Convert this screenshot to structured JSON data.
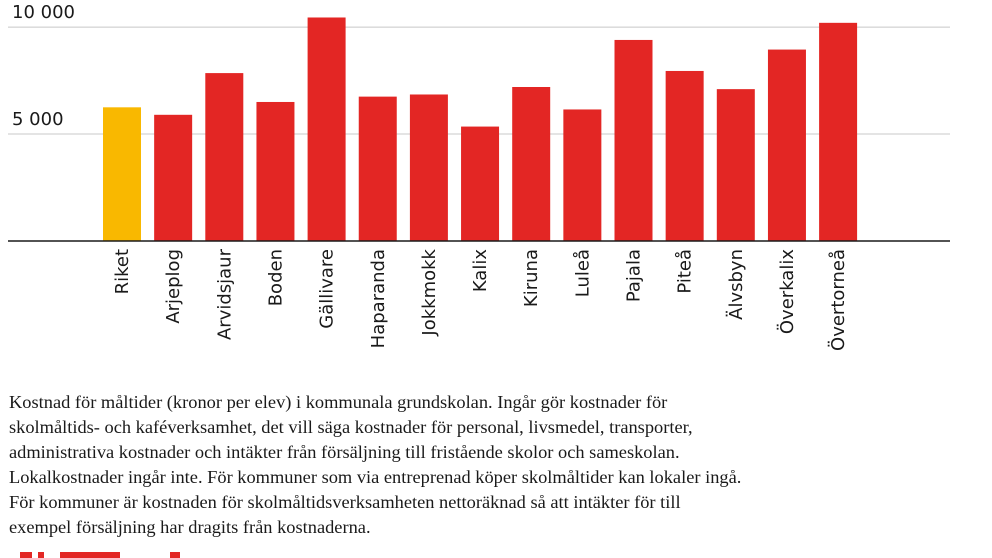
{
  "chart_data": {
    "type": "bar",
    "categories": [
      "Riket",
      "Arjeplog",
      "Arvidsjaur",
      "Boden",
      "Gällivare",
      "Haparanda",
      "Jokkmokk",
      "Kalix",
      "Kiruna",
      "Luleå",
      "Pajala",
      "Piteå",
      "Älvsbyn",
      "Överkalix",
      "Övertorneå"
    ],
    "values": [
      6250,
      5900,
      7850,
      6500,
      10450,
      6750,
      6850,
      5350,
      7200,
      6150,
      9400,
      7950,
      7100,
      8950,
      10200
    ],
    "highlight_index": 0,
    "highlight_color": "#f9b800",
    "bar_color": "#e32624",
    "ylim": [
      0,
      10800
    ],
    "yticks": [
      0,
      5000,
      10000
    ],
    "ytick_labels": [
      "",
      "5 000",
      "10 000"
    ],
    "grid": true
  },
  "caption_lines": [
    "Kostnad för måltider (kronor per elev) i kommunala grundskolan. Ingår gör kostnader för",
    "skolmåltids- och kaféverksamhet, det vill säga kostnader för personal, livsmedel, transporter,",
    "administrativa kostnader och intäkter från försäljning till fristående skolor och sameskolan.",
    "Lokalkostnader ingår inte. För kommuner som via entreprenad köper skolmåltider kan lokaler ingå.",
    "För kommuner är kostnaden för skolmåltidsverksamheten nettoräknad så att intäkter för till",
    "exempel försäljning har dragits från kostnaderna."
  ]
}
